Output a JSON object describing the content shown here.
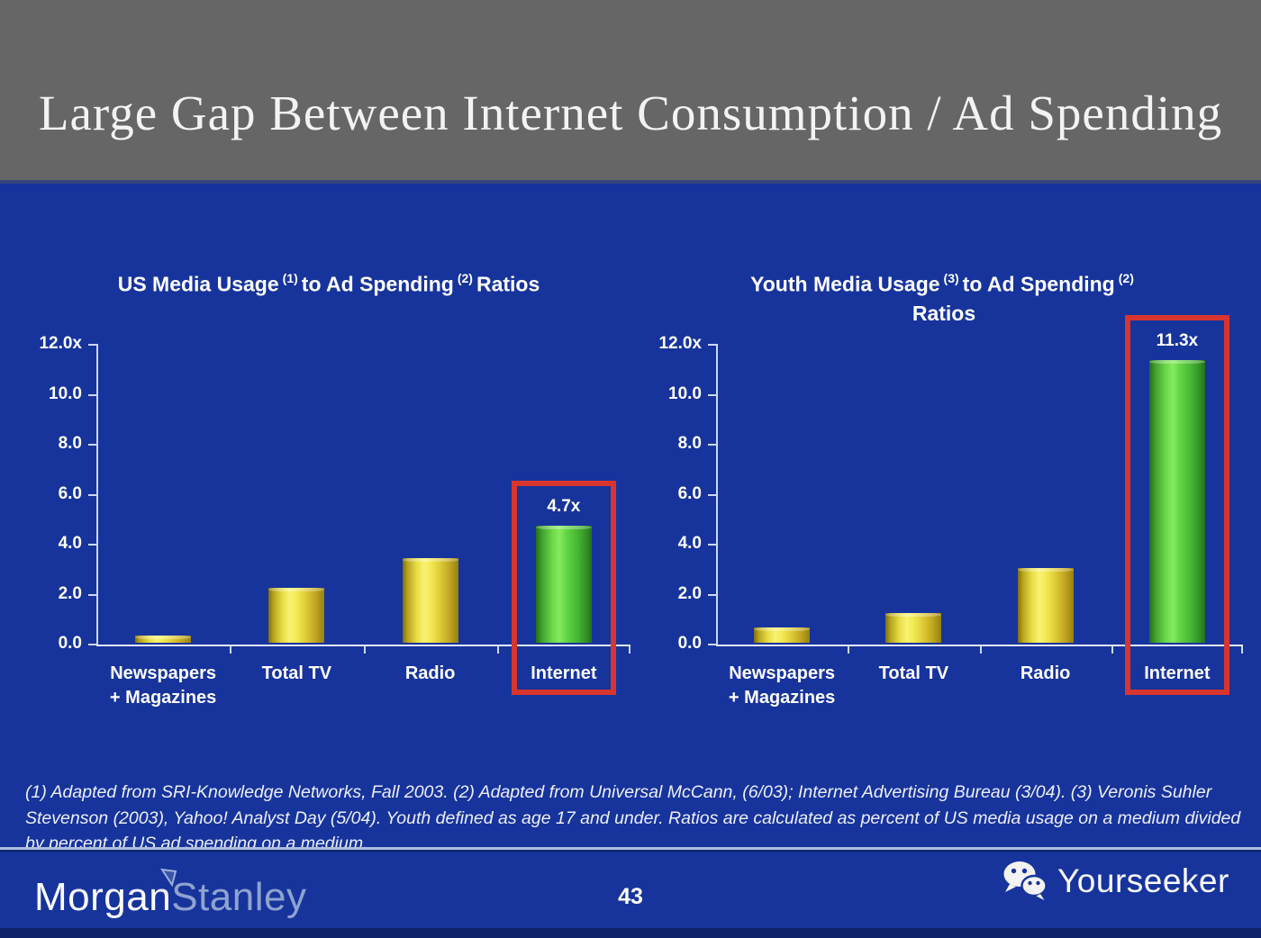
{
  "slide": {
    "title": "Large Gap Between Internet Consumption / Ad Spending",
    "background_color": "#17349c",
    "header_color": "#666667"
  },
  "chart_data": [
    {
      "type": "bar",
      "title_seg1": "US Media Usage",
      "title_sup1": "(1)",
      "title_seg2": "to Ad Spending",
      "title_sup2": "(2)",
      "title_seg3": "Ratios",
      "categories": [
        "Newspapers\n+ Magazines",
        "Total TV",
        "Radio",
        "Internet"
      ],
      "values": [
        0.3,
        2.2,
        3.4,
        4.7
      ],
      "ylim": [
        0,
        12
      ],
      "yticks": [
        "12.0x",
        "10.0",
        "8.0",
        "6.0",
        "4.0",
        "2.0",
        "0.0"
      ],
      "grid": false,
      "legend": "none",
      "bar_color": "#ecd93f",
      "highlight": {
        "index": 3,
        "label": "4.7x",
        "bar_color": "#5ed13e",
        "box_color": "#d8352e"
      }
    },
    {
      "type": "bar",
      "title_seg1": "Youth Media Usage",
      "title_sup1": "(3)",
      "title_seg2": "to Ad Spending",
      "title_sup2": "(2)",
      "title_seg3": "Ratios",
      "categories": [
        "Newspapers\n+ Magazines",
        "Total TV",
        "Radio",
        "Internet"
      ],
      "values": [
        0.6,
        1.2,
        3.0,
        11.3
      ],
      "ylim": [
        0,
        12
      ],
      "yticks": [
        "12.0x",
        "10.0",
        "8.0",
        "6.0",
        "4.0",
        "2.0",
        "0.0"
      ],
      "grid": false,
      "legend": "none",
      "bar_color": "#ecd93f",
      "highlight": {
        "index": 3,
        "label": "11.3x",
        "bar_color": "#5ed13e",
        "box_color": "#d8352e"
      }
    }
  ],
  "footnote": "(1) Adapted from SRI-Knowledge Networks, Fall 2003.  (2) Adapted from Universal McCann, (6/03); Internet Advertising Bureau (3/04). (3) Veronis Suhler Stevenson (2003), Yahoo! Analyst Day (5/04).  Youth defined as age 17 and under.  Ratios are calculated as percent of US media usage on a medium divided by percent of US ad spending on a medium.",
  "footer": {
    "logo_part1": "Morgan",
    "logo_part2": "Stanley",
    "page_number": "43",
    "brand": "Yourseeker"
  }
}
